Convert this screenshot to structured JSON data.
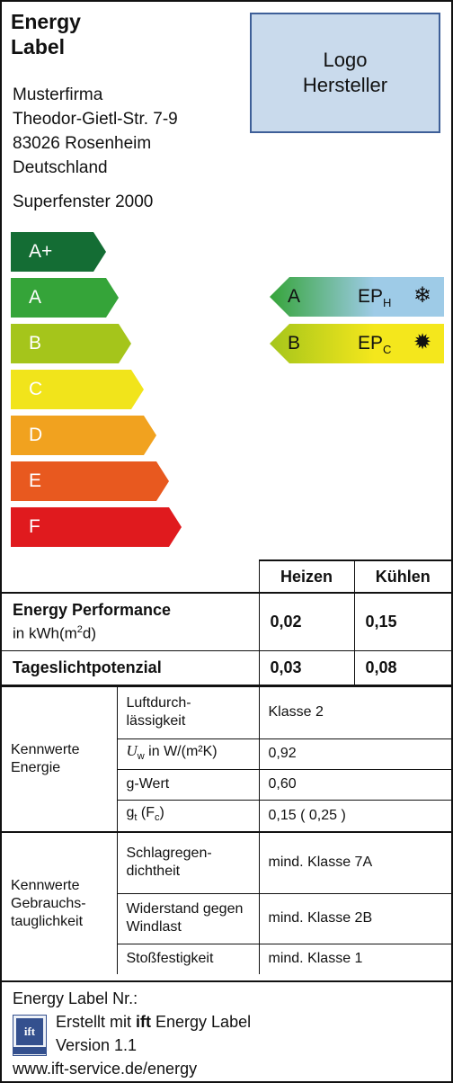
{
  "title_line1": "Energy",
  "title_line2": "Label",
  "logo_line1": "Logo",
  "logo_line2": "Hersteller",
  "address": [
    "Musterfirma",
    "Theodor-Gietl-Str. 7-9",
    "83026 Rosenheim",
    "Deutschland"
  ],
  "product": "Superfenster 2000",
  "scale": [
    {
      "label": "A+",
      "color": "#146d34"
    },
    {
      "label": "A",
      "color": "#35a439"
    },
    {
      "label": "B",
      "color": "#a5c51b"
    },
    {
      "label": "C",
      "color": "#f1e41b"
    },
    {
      "label": "D",
      "color": "#f1a21f"
    },
    {
      "label": "E",
      "color": "#e8591f"
    },
    {
      "label": "F",
      "color": "#e01a1e"
    }
  ],
  "ep_heat": {
    "class": "A",
    "label": "EP",
    "sub": "H",
    "icon": "snowflake-icon",
    "glyph": "❄",
    "gradient_from": "#35a439",
    "gradient_to": "#9ecbe7"
  },
  "ep_cool": {
    "class": "B",
    "label": "EP",
    "sub": "C",
    "icon": "sun-icon",
    "glyph": "✹",
    "gradient_from": "#a5c51b",
    "gradient_to": "#f4e71c"
  },
  "perf": {
    "col_heat": "Heizen",
    "col_cool": "Kühlen",
    "ep_label": "Energy Performance",
    "ep_unit_pre": "in kWh(m",
    "ep_unit_sup": "2",
    "ep_unit_post": "d)",
    "ep_heat": "0,02",
    "ep_cool": "0,15",
    "tl_label": "Tageslichtpotenzial",
    "tl_heat": "0,03",
    "tl_cool": "0,08"
  },
  "energie": {
    "group": "Kennwerte Energie",
    "rows": [
      {
        "name": "Luftdurch-lässigkeit",
        "value": "Klasse 2"
      },
      {
        "name_pre": "U",
        "name_sub": "w",
        "name_post": " in W/(m²K)",
        "value": "0,92"
      },
      {
        "name": "g-Wert",
        "value": "0,60"
      },
      {
        "name_pre": "g",
        "name_sub": "t",
        "name_mid": " (F",
        "name_sub2": "c",
        "name_post": ")",
        "value": "0,15 ( 0,25 )"
      }
    ]
  },
  "gebrauch": {
    "group": "Kennwerte Gebrauchs-tauglichkeit",
    "rows": [
      {
        "name": "Schlagregen-dichtheit",
        "value": "mind. Klasse 7A"
      },
      {
        "name": "Widerstand gegen Windlast",
        "value": "mind. Klasse 2B"
      },
      {
        "name": "Stoßfestigkeit",
        "value": "mind. Klasse 1"
      }
    ]
  },
  "footer": {
    "label_nr": "Energy Label Nr.:",
    "created_pre": "Erstellt mit ",
    "created_bold": "ift",
    "created_post": " Energy Label",
    "version": "Version 1.1",
    "url": "www.ift-service.de/energy",
    "logo_text": "ift"
  }
}
